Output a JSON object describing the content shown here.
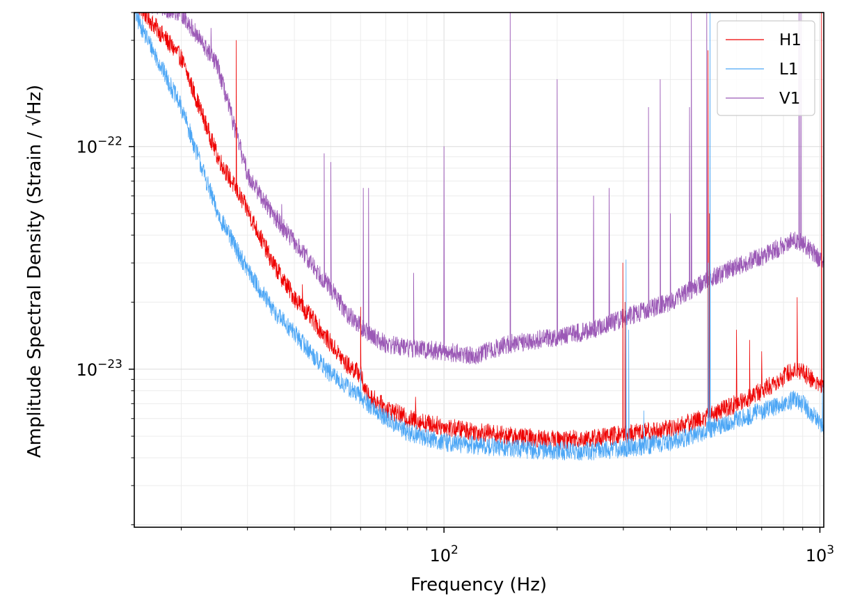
{
  "chart_data": {
    "type": "line",
    "xlabel": "Frequency (Hz)",
    "ylabel": "Amplitude Spectral Density (Strain / √Hz)",
    "x_scale": "log",
    "y_scale": "log",
    "xlim": [
      15,
      1024
    ],
    "ylim": [
      1.95e-24,
      4e-22
    ],
    "grid": true,
    "legend_position": "top-right",
    "x_ticks": [
      {
        "value": 100,
        "base": "10",
        "exp": "2"
      },
      {
        "value": 1000,
        "base": "10",
        "exp": "3"
      }
    ],
    "y_ticks": [
      {
        "value": 1e-23,
        "base": "10",
        "exp": "−23"
      },
      {
        "value": 1e-22,
        "base": "10",
        "exp": "−22"
      }
    ],
    "series": [
      {
        "name": "H1",
        "color": "#ee0000",
        "x": [
          15,
          20,
          25,
          30,
          35,
          40,
          45,
          50,
          55,
          60,
          62,
          70,
          80,
          100,
          150,
          200,
          250,
          300,
          400,
          500,
          600,
          700,
          800,
          850,
          900,
          950,
          1000,
          1024
        ],
        "y": [
          4.5e-22,
          2.5e-22,
          9e-23,
          5.2e-23,
          3e-23,
          2.1e-23,
          1.65e-23,
          1.3e-23,
          1.05e-23,
          9.5e-24,
          7.8e-24,
          6.7e-24,
          6e-24,
          5.5e-24,
          5e-24,
          4.8e-24,
          4.9e-24,
          5.1e-24,
          5.4e-24,
          6.1e-24,
          7e-24,
          8e-24,
          9.2e-24,
          1e-23,
          9.8e-24,
          9e-24,
          8.5e-24,
          8.3e-24
        ],
        "lines": [
          {
            "f": 28,
            "peak": 3e-22
          },
          {
            "f": 33,
            "peak": 3.9e-23
          },
          {
            "f": 42,
            "peak": 2.4e-23
          },
          {
            "f": 60,
            "peak": 1.9e-23
          },
          {
            "f": 84,
            "peak": 7.5e-24
          },
          {
            "f": 299,
            "peak": 3e-23
          },
          {
            "f": 303,
            "peak": 2e-23
          },
          {
            "f": 504,
            "peak": 2.7e-22
          },
          {
            "f": 508,
            "peak": 5e-23
          },
          {
            "f": 600,
            "peak": 1.5e-23
          },
          {
            "f": 650,
            "peak": 1.35e-23
          },
          {
            "f": 700,
            "peak": 1.2e-23
          },
          {
            "f": 870,
            "peak": 2.1e-23
          },
          {
            "f": 1010,
            "peak": 4e-22
          }
        ]
      },
      {
        "name": "L1",
        "color": "#4ca6f5",
        "x": [
          15,
          20,
          25,
          30,
          35,
          40,
          45,
          50,
          60,
          70,
          80,
          100,
          150,
          200,
          250,
          300,
          400,
          500,
          600,
          700,
          800,
          850,
          900,
          950,
          1000,
          1024
        ],
        "y": [
          4e-22,
          1.5e-22,
          5e-23,
          2.8e-23,
          1.85e-23,
          1.45e-23,
          1.15e-23,
          9.5e-24,
          7.5e-24,
          6e-24,
          5.2e-24,
          4.7e-24,
          4.4e-24,
          4.3e-24,
          4.3e-24,
          4.4e-24,
          4.7e-24,
          5.3e-24,
          5.9e-24,
          6.5e-24,
          7e-24,
          7.3e-24,
          7e-24,
          6.3e-24,
          5.8e-24,
          5.6e-24
        ],
        "lines": [
          {
            "f": 60,
            "peak": 1e-23
          },
          {
            "f": 305,
            "peak": 3.1e-23
          },
          {
            "f": 310,
            "peak": 1.5e-23
          },
          {
            "f": 340,
            "peak": 6.5e-24
          },
          {
            "f": 505,
            "peak": 3e-23
          },
          {
            "f": 510,
            "peak": 4e-22
          },
          {
            "f": 1015,
            "peak": 8.5e-24
          }
        ]
      },
      {
        "name": "V1",
        "color": "#9b59b6",
        "x": [
          15,
          20,
          25,
          30,
          35,
          40,
          45,
          50,
          55,
          60,
          65,
          70,
          80,
          100,
          120,
          150,
          200,
          250,
          300,
          400,
          500,
          600,
          700,
          800,
          850,
          900,
          950,
          1000,
          1024
        ],
        "y": [
          4.5e-22,
          4e-22,
          2.3e-22,
          7.5e-23,
          5e-23,
          3.7e-23,
          2.9e-23,
          2.3e-23,
          1.8e-23,
          1.55e-23,
          1.4e-23,
          1.3e-23,
          1.25e-23,
          1.2e-23,
          1.15e-23,
          1.3e-23,
          1.4e-23,
          1.5e-23,
          1.7e-23,
          2e-23,
          2.5e-23,
          2.9e-23,
          3.2e-23,
          3.6e-23,
          3.8e-23,
          3.7e-23,
          3.4e-23,
          3.1e-23,
          3e-23
        ],
        "lines": [
          {
            "f": 24,
            "peak": 3.4e-22
          },
          {
            "f": 37,
            "peak": 5.5e-23
          },
          {
            "f": 48,
            "peak": 9.3e-23
          },
          {
            "f": 50,
            "peak": 8.5e-23
          },
          {
            "f": 61,
            "peak": 6.5e-23
          },
          {
            "f": 63,
            "peak": 6.5e-23
          },
          {
            "f": 83,
            "peak": 2.7e-23
          },
          {
            "f": 100,
            "peak": 1e-22
          },
          {
            "f": 150,
            "peak": 4e-22
          },
          {
            "f": 200,
            "peak": 2e-22
          },
          {
            "f": 250,
            "peak": 6e-23
          },
          {
            "f": 275,
            "peak": 6.5e-23
          },
          {
            "f": 350,
            "peak": 1.5e-22
          },
          {
            "f": 376,
            "peak": 2e-22
          },
          {
            "f": 400,
            "peak": 5e-23
          },
          {
            "f": 450,
            "peak": 1.5e-22
          },
          {
            "f": 455,
            "peak": 4e-22
          },
          {
            "f": 500,
            "peak": 4e-22
          },
          {
            "f": 880,
            "peak": 4e-22
          },
          {
            "f": 890,
            "peak": 4e-22
          }
        ]
      }
    ]
  }
}
